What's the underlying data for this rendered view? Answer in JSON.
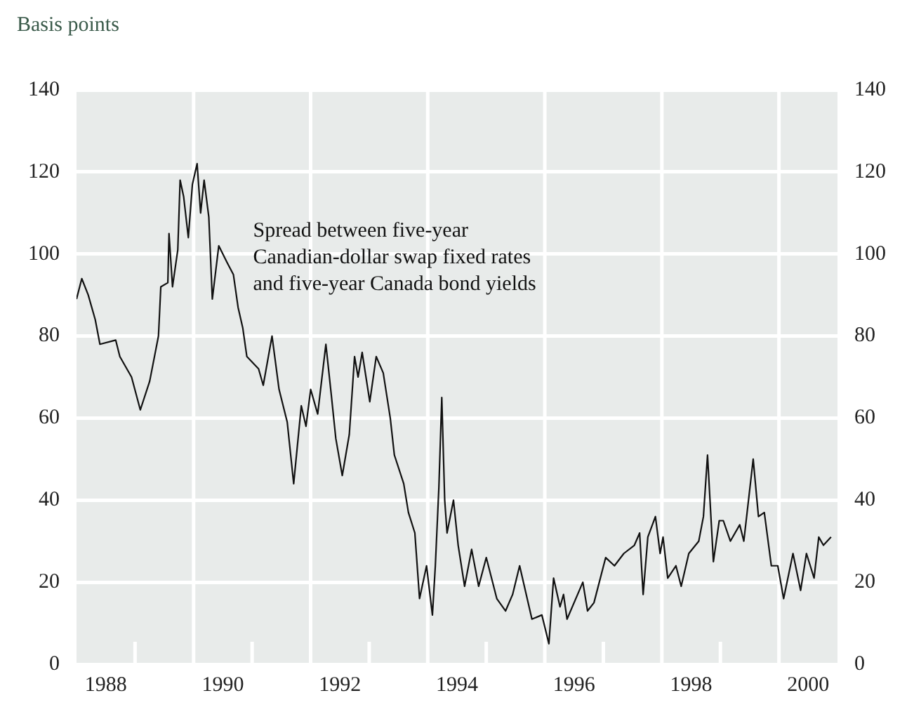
{
  "chart_data": {
    "type": "line",
    "ylabel": "Basis points",
    "annotations": [
      "Spread between five-year\nCanadian-dollar swap fixed rates\nand five-year Canada bond yields"
    ],
    "xlim": [
      1988,
      2001
    ],
    "xticks": [
      {
        "value": 1988.5,
        "label": "1988"
      },
      {
        "value": 1989,
        "label": null
      },
      {
        "value": 1990,
        "label": null
      },
      {
        "value": 1990.5,
        "label": "1990"
      },
      {
        "value": 1991,
        "label": null
      },
      {
        "value": 1992,
        "label": null
      },
      {
        "value": 1992.5,
        "label": "1992"
      },
      {
        "value": 1993,
        "label": null
      },
      {
        "value": 1994,
        "label": null
      },
      {
        "value": 1994.5,
        "label": "1994"
      },
      {
        "value": 1995,
        "label": null
      },
      {
        "value": 1996,
        "label": null
      },
      {
        "value": 1996.5,
        "label": "1996"
      },
      {
        "value": 1997,
        "label": null
      },
      {
        "value": 1998,
        "label": null
      },
      {
        "value": 1998.5,
        "label": "1998"
      },
      {
        "value": 1999,
        "label": null
      },
      {
        "value": 2000,
        "label": null
      },
      {
        "value": 2000.5,
        "label": "2000"
      }
    ],
    "ylim": [
      0,
      140
    ],
    "yticks": [
      0,
      20,
      40,
      60,
      80,
      100,
      120,
      140
    ],
    "y2lim": [
      0,
      140
    ],
    "y2ticks": [
      0,
      20,
      40,
      60,
      80,
      100,
      120,
      140
    ],
    "grid": true,
    "legend": false,
    "marker": "none",
    "line_style": "solid",
    "series": [
      {
        "color": "#111111",
        "x": [
          1988.0,
          1988.09,
          1988.2,
          1988.32,
          1988.4,
          1988.67,
          1988.74,
          1988.94,
          1989.09,
          1989.25,
          1989.4,
          1989.44,
          1989.56,
          1989.58,
          1989.64,
          1989.73,
          1989.77,
          1989.83,
          1989.91,
          1989.98,
          1990.06,
          1990.12,
          1990.18,
          1990.26,
          1990.32,
          1990.43,
          1990.57,
          1990.68,
          1990.76,
          1990.84,
          1990.91,
          1991.11,
          1991.19,
          1991.34,
          1991.46,
          1991.6,
          1991.71,
          1991.84,
          1991.92,
          1992.0,
          1992.12,
          1992.26,
          1992.35,
          1992.43,
          1992.54,
          1992.66,
          1992.75,
          1992.81,
          1992.88,
          1993.01,
          1993.12,
          1993.24,
          1993.36,
          1993.43,
          1993.59,
          1993.67,
          1993.78,
          1993.86,
          1993.98,
          1994.08,
          1994.13,
          1994.19,
          1994.24,
          1994.29,
          1994.33,
          1994.44,
          1994.52,
          1994.63,
          1994.75,
          1994.87,
          1995.0,
          1995.18,
          1995.33,
          1995.45,
          1995.57,
          1995.78,
          1995.95,
          1996.07,
          1996.15,
          1996.26,
          1996.32,
          1996.38,
          1996.65,
          1996.73,
          1996.84,
          1997.04,
          1997.19,
          1997.35,
          1997.53,
          1997.62,
          1997.68,
          1997.76,
          1997.89,
          1997.97,
          1998.02,
          1998.1,
          1998.24,
          1998.33,
          1998.46,
          1998.63,
          1998.71,
          1998.78,
          1998.88,
          1998.98,
          1999.05,
          1999.17,
          1999.33,
          1999.4,
          1999.48,
          1999.56,
          1999.65,
          1999.75,
          1999.87,
          1999.98,
          2000.08,
          2000.24,
          2000.37,
          2000.47,
          2000.6,
          2000.68,
          2000.76,
          2000.89
        ],
        "values": [
          89,
          94,
          90,
          84,
          78,
          79,
          75,
          70,
          62,
          69,
          80,
          92,
          93,
          105,
          92,
          101,
          118,
          114,
          104,
          117,
          122,
          110,
          118,
          109,
          89,
          102,
          98,
          95,
          87,
          82,
          75,
          72,
          68,
          80,
          67,
          59,
          44,
          63,
          58,
          67,
          61,
          78,
          66,
          55,
          46,
          56,
          75,
          70,
          76,
          64,
          75,
          71,
          60,
          51,
          44,
          37,
          32,
          16,
          24,
          12,
          24,
          43,
          65,
          40,
          32,
          40,
          29,
          19,
          28,
          19,
          26,
          16,
          13,
          17,
          24,
          11,
          12,
          5,
          21,
          14,
          17,
          11,
          20,
          13,
          15,
          26,
          24,
          27,
          29,
          32,
          17,
          31,
          36,
          27,
          31,
          21,
          24,
          19,
          27,
          30,
          36,
          51,
          25,
          35,
          35,
          30,
          34,
          30,
          40,
          50,
          36,
          37,
          24,
          24,
          16,
          27,
          18,
          27,
          21,
          31,
          29,
          31
        ]
      }
    ]
  }
}
